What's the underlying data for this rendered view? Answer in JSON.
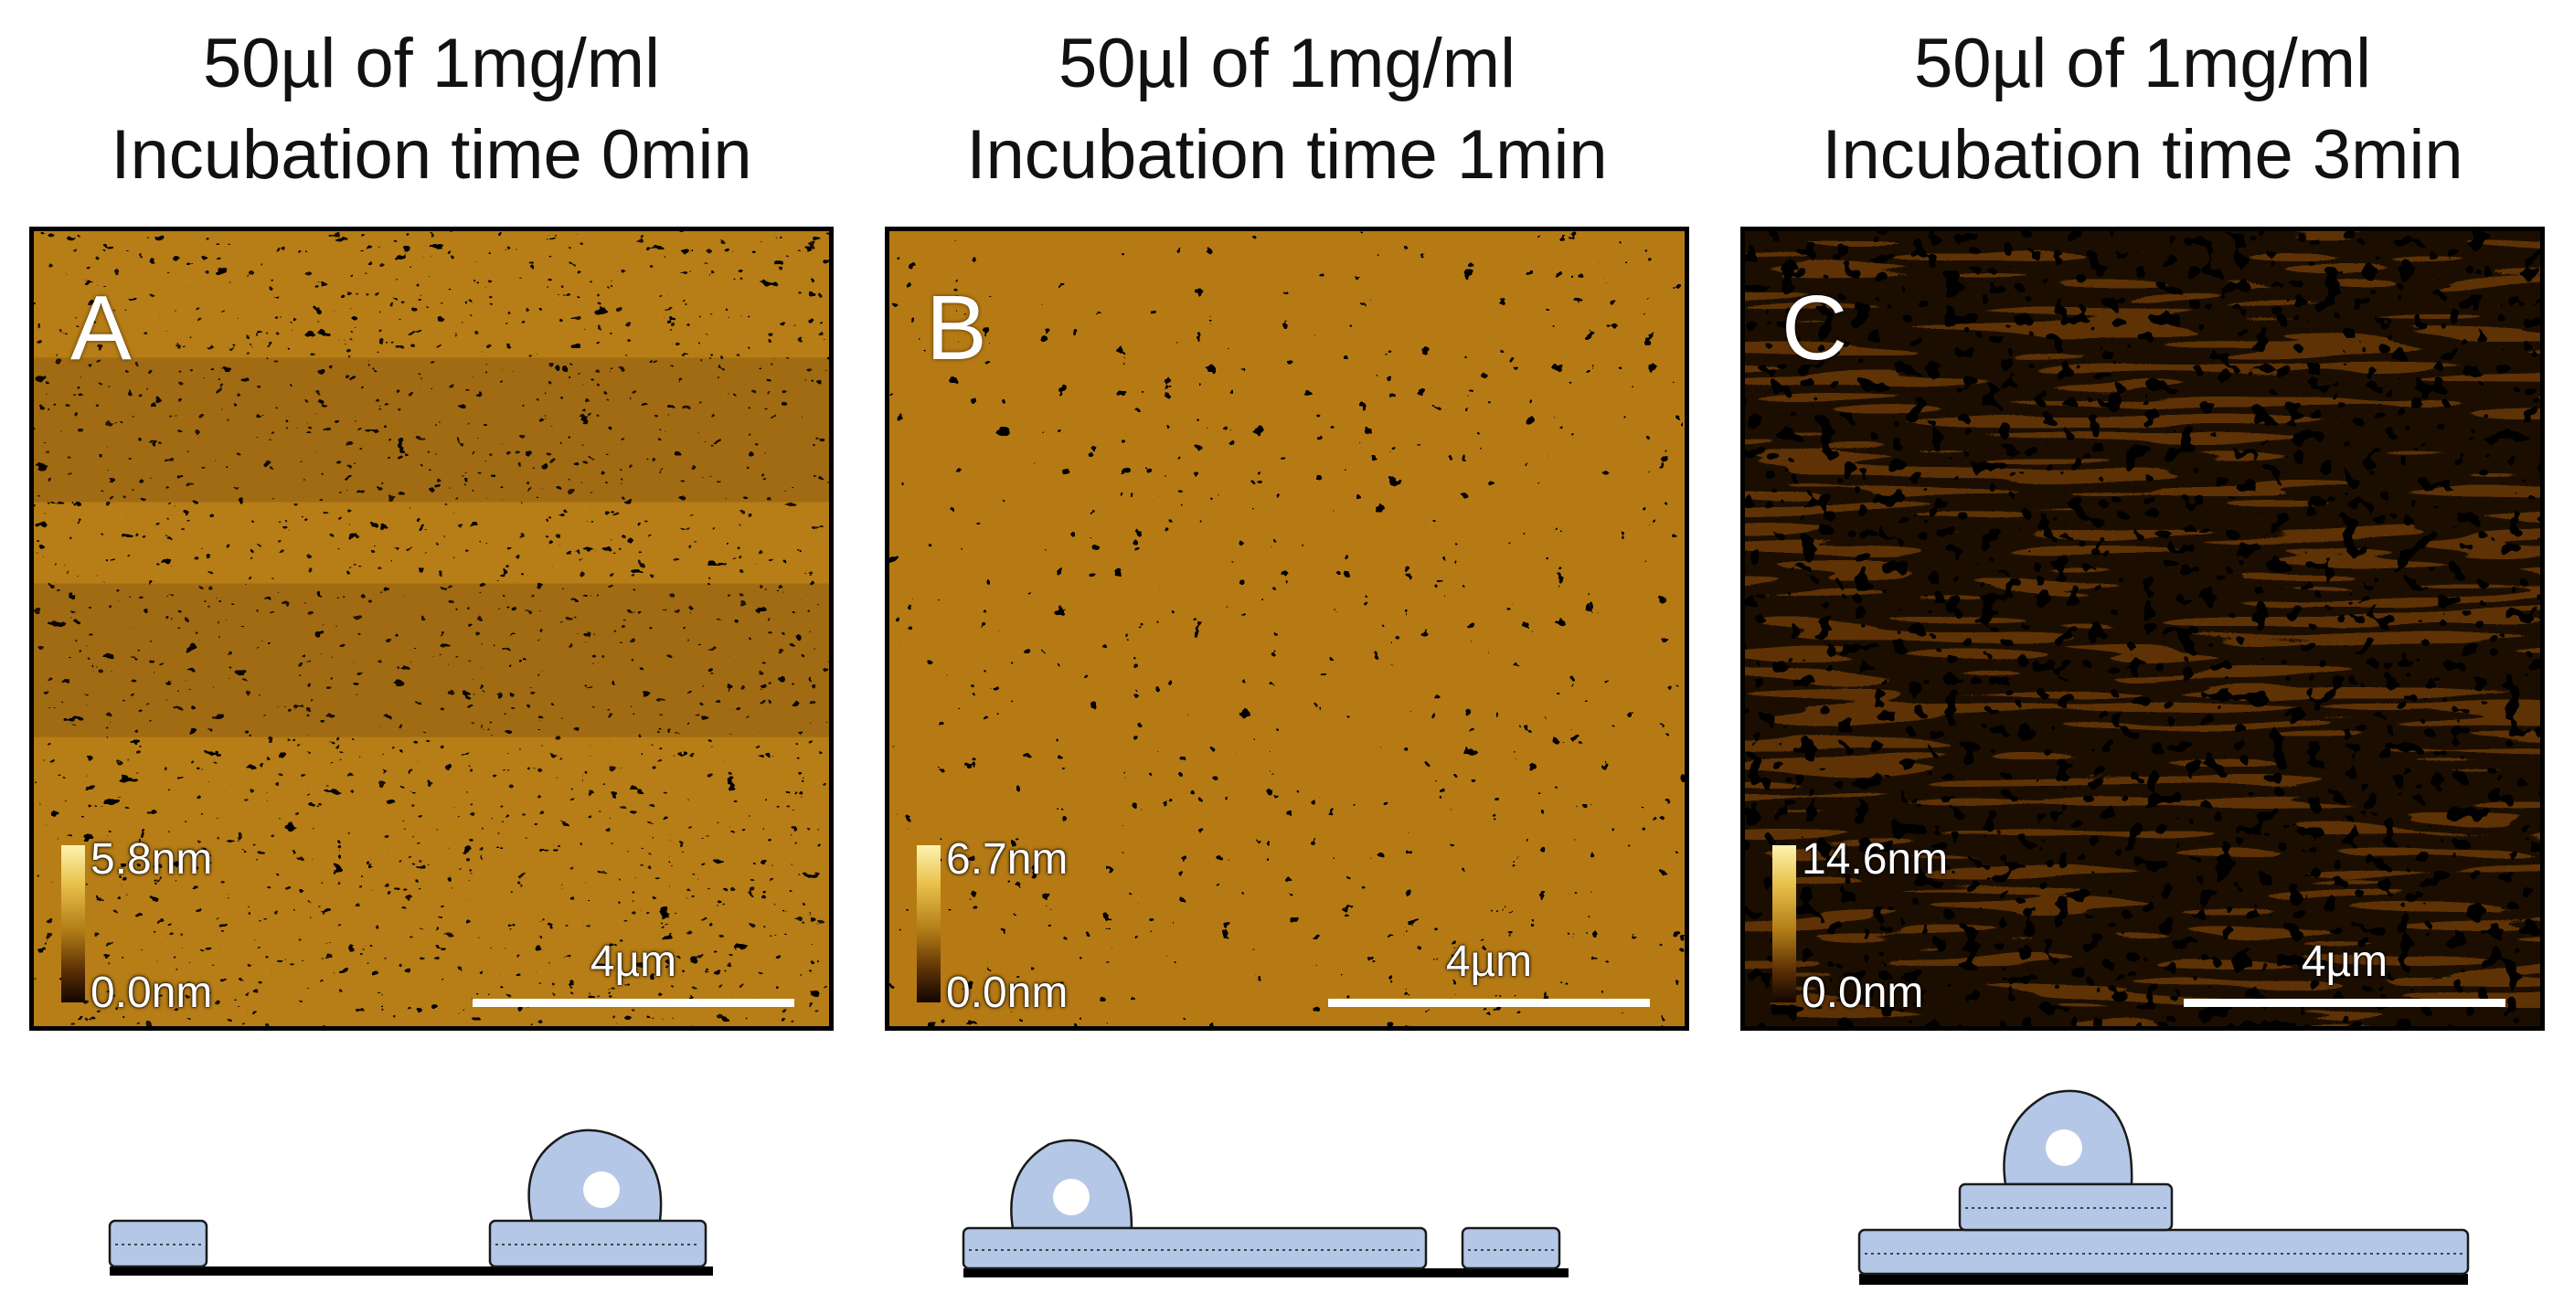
{
  "panels": [
    {
      "title_line1": "50µl of 1mg/ml",
      "title_line2": "Incubation time 0min",
      "letter": "A",
      "colorbar_max": "5.8nm",
      "colorbar_min": "0.0nm",
      "scalebar_label": "4µm",
      "colors": {
        "base": "#b77d16",
        "dark": "#2a1000",
        "bright": "#f2cf55"
      }
    },
    {
      "title_line1": "50µl of 1mg/ml",
      "title_line2": "Incubation time 1min",
      "letter": "B",
      "colorbar_max": "6.7nm",
      "colorbar_min": "0.0nm",
      "scalebar_label": "4µm",
      "colors": {
        "base": "#b67a14",
        "dark": "#241000",
        "bright": "#f0c84a"
      }
    },
    {
      "title_line1": "50µl of 1mg/ml",
      "title_line2": "Incubation time 3min",
      "letter": "C",
      "colorbar_max": "14.6nm",
      "colorbar_min": "0.0nm",
      "scalebar_label": "4µm",
      "colors": {
        "base": "#5e3205",
        "dark": "#1e0a00",
        "bright": "#f6e07a"
      }
    }
  ],
  "schematic_colors": {
    "fill": "#b4c7e7",
    "stroke": "#1a1a1a",
    "substrate": "#000000"
  }
}
